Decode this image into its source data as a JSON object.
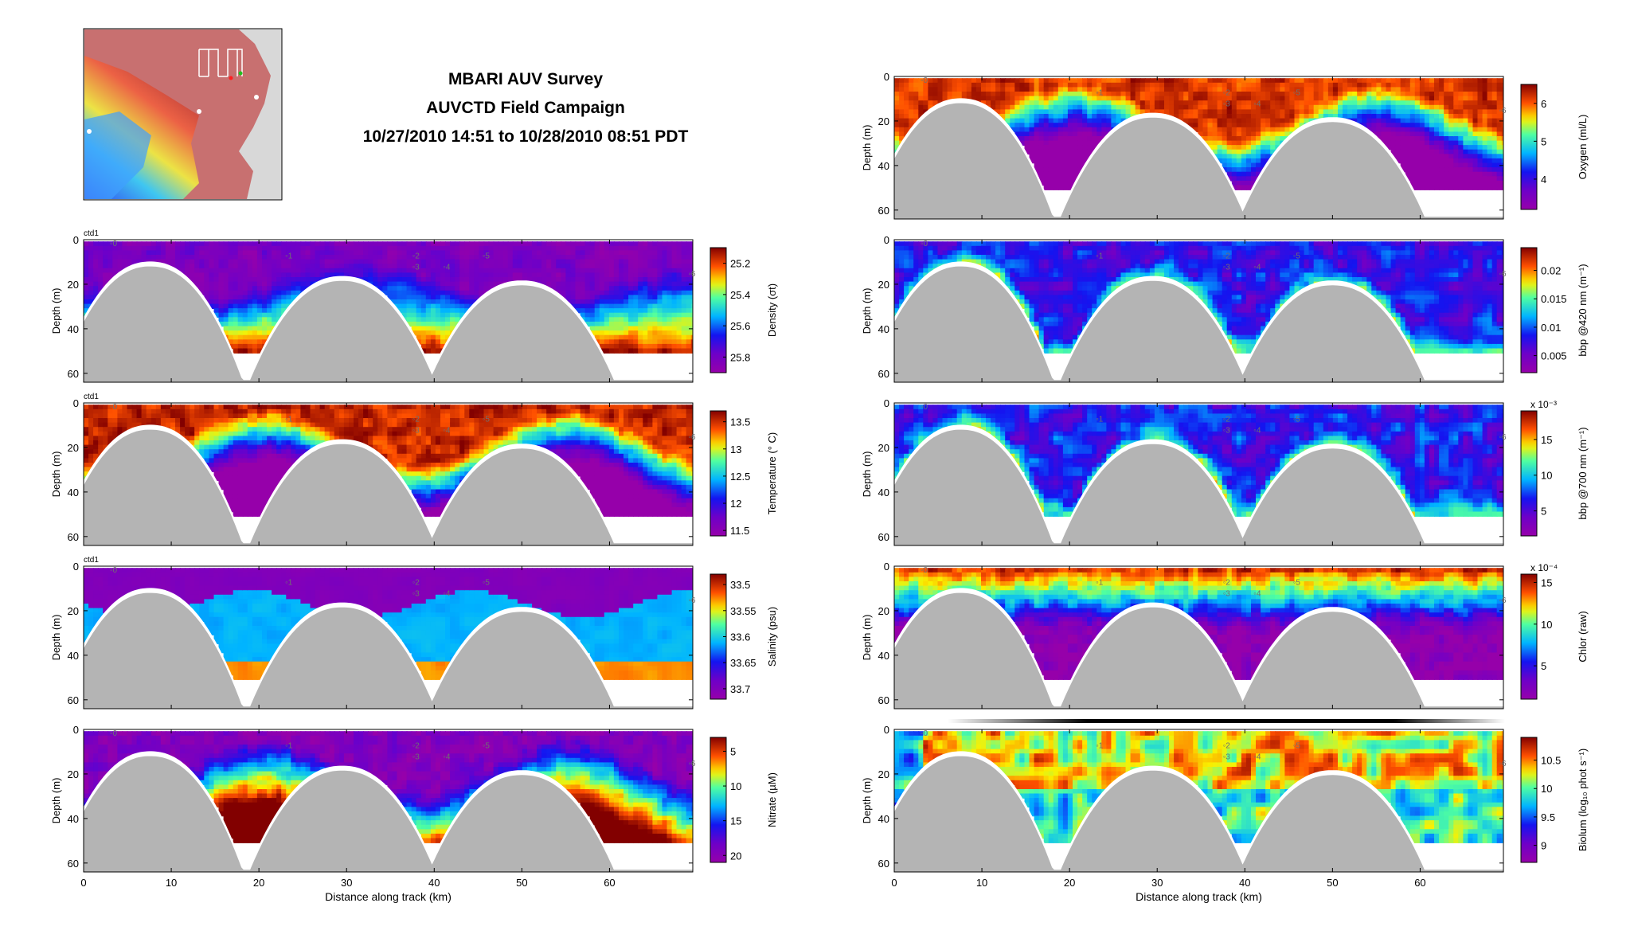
{
  "header": {
    "title": "MBARI AUV Survey",
    "subtitle": "AUVCTD Field Campaign",
    "date_range": "10/27/2010 14:51 to 10/28/2010 08:51 PDT"
  },
  "common_axes": {
    "xlabel": "Distance along track (km)",
    "ylabel": "Depth (m)",
    "x_ticks": [
      "0",
      "10",
      "20",
      "30",
      "40",
      "50",
      "60"
    ],
    "y_ticks": [
      "0",
      "20",
      "40",
      "60"
    ],
    "xlim": [
      0,
      69.5
    ],
    "ylim": [
      0,
      64
    ]
  },
  "map_inset": {
    "description_visible": "bathymetry map with AUV track"
  },
  "chart_data": [
    {
      "type": "heatmap",
      "id": "density",
      "panel_label": "ctd1",
      "colorbar_label": "Density (σt)",
      "colorbar_ticks": [
        "25.2",
        "25.4",
        "25.6",
        "25.8"
      ],
      "colorbar_tick_values": [
        25.2,
        25.4,
        25.6,
        25.8
      ],
      "clim": [
        25.1,
        25.9
      ],
      "colormap": "jet_reversed",
      "xlabel": "",
      "ylabel": "Depth (m)",
      "station_labels": [
        "0",
        "1",
        "2",
        "3",
        "4",
        "5",
        "6"
      ]
    },
    {
      "type": "heatmap",
      "id": "temperature",
      "panel_label": "ctd1",
      "colorbar_label": "Temperature (° C)",
      "colorbar_ticks": [
        "13.5",
        "13",
        "12.5",
        "12",
        "11.5"
      ],
      "colorbar_tick_values": [
        13.5,
        13,
        12.5,
        12,
        11.5
      ],
      "clim": [
        11.4,
        13.7
      ],
      "colormap": "jet",
      "xlabel": "",
      "ylabel": "Depth (m)",
      "station_labels": [
        "0",
        "1",
        "2",
        "3",
        "4",
        "5",
        "6"
      ]
    },
    {
      "type": "heatmap",
      "id": "salinity",
      "panel_label": "ctd1",
      "colorbar_label": "Salinity (psu)",
      "colorbar_ticks": [
        "33.5",
        "33.55",
        "33.6",
        "33.65",
        "33.7"
      ],
      "colorbar_tick_values": [
        33.5,
        33.55,
        33.6,
        33.65,
        33.7
      ],
      "clim": [
        33.48,
        33.72
      ],
      "colormap": "jet_reversed",
      "xlabel": "",
      "ylabel": "Depth (m)",
      "station_labels": [
        "0",
        "1",
        "2",
        "3",
        "4",
        "5",
        "6"
      ]
    },
    {
      "type": "heatmap",
      "id": "nitrate",
      "colorbar_label": "Nitrate (µM)",
      "colorbar_ticks": [
        "5",
        "10",
        "15",
        "20"
      ],
      "colorbar_tick_values": [
        5,
        10,
        15,
        20
      ],
      "clim": [
        3,
        21
      ],
      "colormap": "jet_reversed",
      "xlabel": "Distance along track (km)",
      "ylabel": "Depth (m)",
      "station_labels": [
        "0",
        "1",
        "2",
        "3",
        "4",
        "5",
        "6"
      ]
    },
    {
      "type": "heatmap",
      "id": "oxygen",
      "colorbar_label": "Oxygen (ml/L)",
      "colorbar_ticks": [
        "6",
        "5",
        "4"
      ],
      "colorbar_tick_values": [
        6,
        5,
        4
      ],
      "clim": [
        3.2,
        6.5
      ],
      "colormap": "jet",
      "xlabel": "",
      "ylabel": "Depth (m)",
      "station_labels": [
        "0",
        "1",
        "2",
        "3",
        "4",
        "5",
        "6"
      ]
    },
    {
      "type": "heatmap",
      "id": "bbp420",
      "colorbar_label": "bbp @420 nm (m⁻¹)",
      "colorbar_ticks": [
        "0.02",
        "0.015",
        "0.01",
        "0.005"
      ],
      "colorbar_tick_values": [
        0.02,
        0.015,
        0.01,
        0.005
      ],
      "clim": [
        0.002,
        0.024
      ],
      "colormap": "jet",
      "xlabel": "",
      "ylabel": "Depth (m)",
      "station_labels": [
        "0",
        "1",
        "2",
        "3",
        "4",
        "5",
        "6"
      ]
    },
    {
      "type": "heatmap",
      "id": "bbp700",
      "colorbar_label": "bbp @700 nm (m⁻¹)",
      "colorbar_multiplier": "x 10⁻³",
      "colorbar_ticks": [
        "15",
        "10",
        "5"
      ],
      "colorbar_tick_values": [
        15,
        10,
        5
      ],
      "clim": [
        1.5,
        19
      ],
      "colormap": "jet",
      "xlabel": "",
      "ylabel": "Depth (m)",
      "station_labels": [
        "0",
        "1",
        "2",
        "3",
        "4",
        "5",
        "6"
      ]
    },
    {
      "type": "heatmap",
      "id": "chlor",
      "colorbar_label": "Chlor (raw)",
      "colorbar_multiplier": "x 10⁻⁴",
      "colorbar_ticks": [
        "15",
        "10",
        "5"
      ],
      "colorbar_tick_values": [
        15,
        10,
        5
      ],
      "clim": [
        1,
        16
      ],
      "colormap": "jet",
      "xlabel": "",
      "ylabel": "Depth (m)",
      "station_labels": [
        "0",
        "1",
        "2",
        "3",
        "4",
        "5",
        "6"
      ]
    },
    {
      "type": "heatmap",
      "id": "biolum",
      "colorbar_label": "Biolum (log₁₀ phot s⁻¹)",
      "colorbar_ticks": [
        "10.5",
        "10",
        "9.5",
        "9"
      ],
      "colorbar_tick_values": [
        10.5,
        10,
        9.5,
        9
      ],
      "clim": [
        8.7,
        10.9
      ],
      "colormap": "jet",
      "xlabel": "Distance along track (km)",
      "ylabel": "Depth (m)",
      "station_labels": [
        "0",
        "1",
        "2",
        "3",
        "4",
        "5",
        "6"
      ]
    }
  ]
}
